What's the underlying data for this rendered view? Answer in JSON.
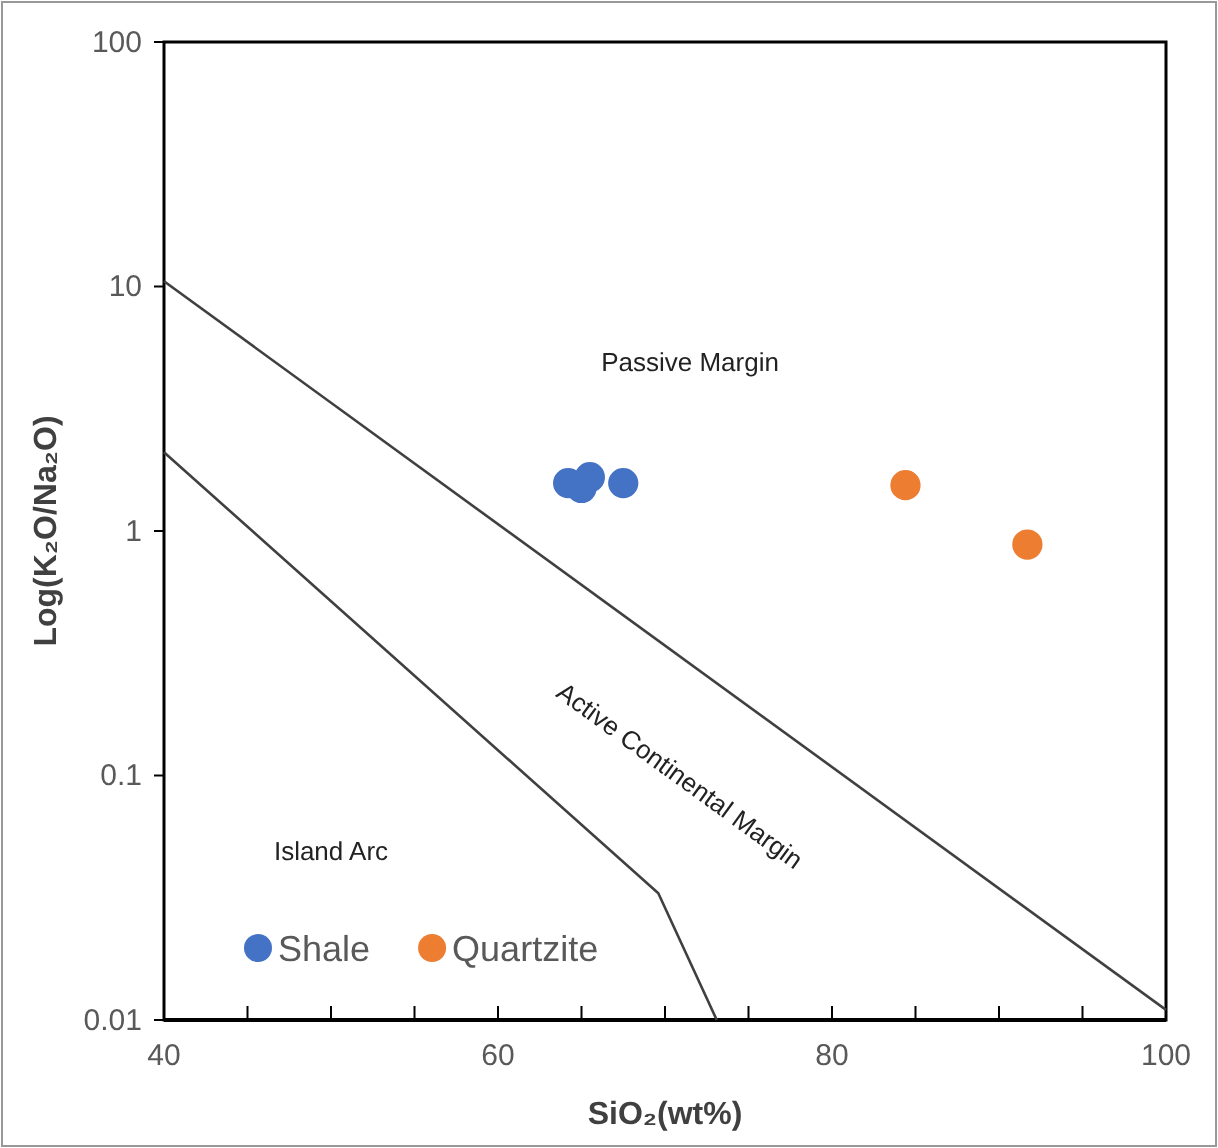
{
  "chart_data": {
    "type": "scatter",
    "xlabel": "SiO₂(wt%)",
    "ylabel": "Log(K₂O/Na₂O)",
    "log": "y",
    "xlim": [
      40,
      100
    ],
    "ylim": [
      0.01,
      100
    ],
    "xticks": [
      40,
      {
        "value": 45,
        "label": null
      },
      {
        "value": 50,
        "label": null
      },
      {
        "value": 55,
        "label": null
      },
      60,
      {
        "value": 65,
        "label": null
      },
      {
        "value": 70,
        "label": null
      },
      {
        "value": 75,
        "label": null
      },
      80,
      {
        "value": 85,
        "label": null
      },
      {
        "value": 90,
        "label": null
      },
      {
        "value": 95,
        "label": null
      },
      100
    ],
    "yticks": [
      0.01,
      0.1,
      1,
      10,
      100
    ],
    "legend": "bottom left",
    "series": [
      {
        "name": "Shale",
        "color": "#4472c4",
        "marker": "circle",
        "x": [
          64.2,
          65.5,
          65.0,
          67.5
        ],
        "values": [
          1.57,
          1.66,
          1.5,
          1.57
        ]
      },
      {
        "name": "Quartzite",
        "color": "#ed7d31",
        "marker": "circle",
        "x": [
          84.4,
          91.7
        ],
        "values": [
          1.54,
          0.88
        ]
      },
      {
        "type": "line",
        "color": "#404040",
        "x": [
          40,
          100
        ],
        "values": [
          10.5,
          0.011
        ]
      },
      {
        "type": "line",
        "color": "#404040",
        "x": [
          40,
          69.6,
          73.1
        ],
        "values": [
          2.1,
          0.033,
          0.01
        ]
      }
    ],
    "annotations": [
      "Passive Margin",
      "Island Arc",
      "Active Continental Margin"
    ]
  }
}
